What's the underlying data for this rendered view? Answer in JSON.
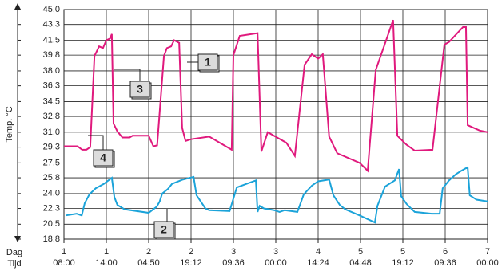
{
  "chart_data": {
    "type": "line",
    "ylabel": "Temp. °C",
    "xlabel": "Dag",
    "xlabel2": "Tijd",
    "xlim": [
      0,
      10
    ],
    "xticks": [
      {
        "value": 0,
        "label": "1"
      },
      {
        "value": 1,
        "label": "1"
      },
      {
        "value": 2,
        "label": "2"
      },
      {
        "value": 3,
        "label": "2"
      },
      {
        "value": 4,
        "label": "3"
      },
      {
        "value": 5,
        "label": "3"
      },
      {
        "value": 6,
        "label": "4"
      },
      {
        "value": 7,
        "label": "5"
      },
      {
        "value": 8,
        "label": "5"
      },
      {
        "value": 9,
        "label": "6"
      },
      {
        "value": 10,
        "label": "7"
      }
    ],
    "xticks2": [
      {
        "value": 0,
        "label": "08:00"
      },
      {
        "value": 1,
        "label": "14:00"
      },
      {
        "value": 2,
        "label": "04:50"
      },
      {
        "value": 3,
        "label": "19:12"
      },
      {
        "value": 4,
        "label": "09:36"
      },
      {
        "value": 5,
        "label": "00:00"
      },
      {
        "value": 6,
        "label": "14:24"
      },
      {
        "value": 7,
        "label": "04:48"
      },
      {
        "value": 8,
        "label": "19:12"
      },
      {
        "value": 9,
        "label": "09:36"
      },
      {
        "value": 10,
        "label": "00:00"
      }
    ],
    "ylim": [
      18.8,
      45
    ],
    "yticks": [
      {
        "value": 45,
        "label": "45.0"
      },
      43.3,
      41.5,
      39.8,
      {
        "value": 38,
        "label": "38.0"
      },
      36.3,
      34.5,
      32.8,
      {
        "value": 31,
        "label": "31.0"
      },
      29.3,
      27.5,
      25.8,
      {
        "value": 24,
        "label": "24.0"
      },
      22.3,
      20.5,
      18.8
    ],
    "grid": true,
    "series": [
      {
        "color": "#e0197d",
        "x": [
          0,
          0.32,
          0.43,
          0.53,
          0.62,
          0.72,
          0.83,
          0.92,
          1.0,
          1.09,
          1.13,
          1.17,
          1.26,
          1.38,
          1.55,
          1.62,
          2.0,
          2.11,
          2.2,
          2.36,
          2.43,
          2.53,
          2.6,
          2.72,
          2.79,
          2.87,
          3.0,
          3.43,
          3.96,
          4.0,
          4.15,
          4.57,
          4.66,
          4.81,
          5.25,
          5.45,
          5.68,
          5.85,
          6.0,
          6.11,
          6.26,
          6.45,
          6.98,
          7.17,
          7.36,
          7.62,
          7.77,
          7.87,
          8.08,
          8.28,
          8.7,
          8.98,
          9.09,
          9.42,
          9.49,
          9.53,
          9.81,
          10.0
        ],
        "values": [
          29.4,
          29.4,
          29.0,
          29.0,
          29.3,
          39.7,
          40.8,
          40.6,
          41.5,
          41.7,
          42.2,
          32.0,
          31.1,
          30.4,
          30.4,
          30.6,
          30.6,
          29.4,
          29.5,
          39.7,
          40.6,
          40.8,
          41.5,
          41.2,
          31.5,
          30.0,
          30.2,
          30.5,
          29.0,
          39.8,
          42.0,
          42.3,
          28.8,
          31.0,
          29.8,
          28.3,
          38.7,
          39.9,
          39.4,
          39.9,
          30.5,
          28.6,
          27.5,
          26.6,
          38.1,
          41.7,
          43.8,
          30.6,
          29.6,
          28.9,
          29.0,
          41.0,
          41.3,
          43.0,
          43.0,
          31.8,
          31.2,
          31.0
        ]
      },
      {
        "color": "#1ba3d9",
        "x": [
          0.04,
          0.3,
          0.42,
          0.49,
          0.6,
          0.75,
          0.94,
          1.13,
          1.19,
          1.26,
          1.43,
          2.0,
          2.19,
          2.26,
          2.32,
          2.45,
          2.55,
          2.81,
          3.06,
          3.13,
          3.34,
          3.43,
          3.91,
          4.08,
          4.53,
          4.57,
          4.62,
          4.72,
          4.96,
          5.09,
          5.21,
          5.51,
          5.66,
          5.85,
          6.0,
          6.26,
          6.36,
          6.51,
          6.64,
          6.98,
          7.34,
          7.4,
          7.58,
          7.81,
          7.91,
          7.96,
          8.09,
          8.28,
          8.68,
          8.87,
          8.94,
          9.09,
          9.25,
          9.38,
          9.53,
          9.58,
          9.74,
          10.0
        ],
        "values": [
          21.5,
          21.7,
          21.5,
          22.9,
          23.9,
          24.6,
          25.1,
          25.8,
          23.6,
          22.7,
          22.2,
          21.8,
          22.5,
          23.1,
          24.0,
          24.5,
          25.1,
          25.6,
          25.9,
          23.8,
          22.3,
          22.1,
          22.0,
          24.7,
          25.5,
          21.9,
          22.6,
          22.3,
          22.1,
          21.9,
          22.1,
          21.9,
          23.9,
          24.9,
          25.4,
          25.6,
          23.8,
          22.7,
          22.2,
          21.5,
          20.7,
          22.6,
          24.8,
          25.5,
          26.8,
          23.7,
          22.8,
          21.9,
          21.7,
          21.7,
          24.6,
          25.5,
          26.2,
          26.6,
          27.0,
          23.8,
          23.3,
          23.1
        ]
      }
    ],
    "annotations": [
      "1",
      "2",
      "3",
      "4"
    ]
  }
}
